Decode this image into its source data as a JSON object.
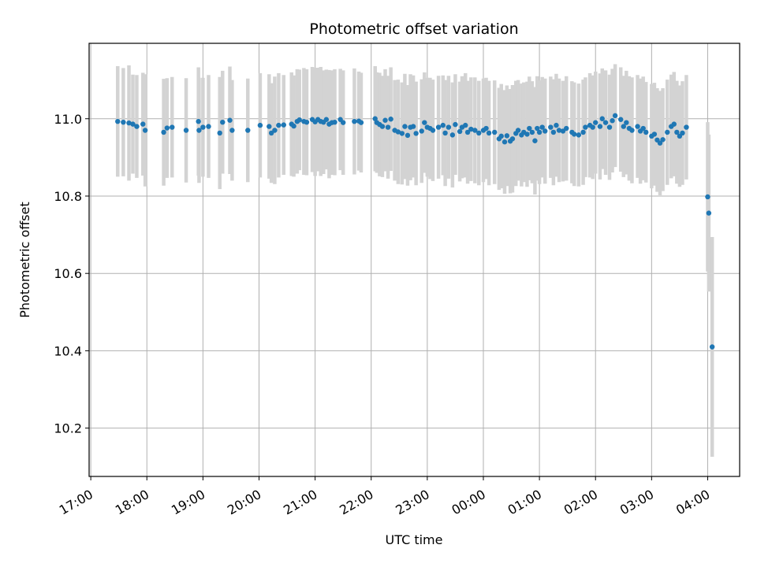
{
  "chart_data": {
    "type": "scatter",
    "title": "Photometric offset variation",
    "xlabel": "UTC time",
    "ylabel": "Photometric offset",
    "x_unit": "hours since 17:00 UTC",
    "xlim": [
      -0.03,
      11.57
    ],
    "ylim": [
      10.075,
      11.195
    ],
    "xticks": [
      "17:00",
      "18:00",
      "19:00",
      "20:00",
      "21:00",
      "22:00",
      "23:00",
      "00:00",
      "01:00",
      "02:00",
      "03:00",
      "04:00"
    ],
    "yticks": [
      "10.2",
      "10.4",
      "10.6",
      "10.8",
      "11.0"
    ],
    "grid": true,
    "colors": {
      "marker": "#1f77b4",
      "errorbar": "#d3d3d3",
      "grid": "#b0b0b0"
    },
    "series": [
      {
        "values": [
          [
            0.48,
            10.993,
            0.143
          ],
          [
            0.58,
            10.991,
            0.14
          ],
          [
            0.68,
            10.989,
            0.149
          ],
          [
            0.75,
            10.986,
            0.128
          ],
          [
            0.82,
            10.98,
            0.133
          ],
          [
            0.93,
            10.986,
            0.133
          ],
          [
            0.97,
            10.97,
            0.145
          ],
          [
            1.3,
            10.965,
            0.138
          ],
          [
            1.36,
            10.976,
            0.129
          ],
          [
            1.45,
            10.978,
            0.13
          ],
          [
            1.7,
            10.97,
            0.135
          ],
          [
            1.92,
            10.993,
            0.14
          ],
          [
            1.93,
            10.97,
            0.136
          ],
          [
            2.0,
            10.978,
            0.128
          ],
          [
            2.1,
            10.98,
            0.133
          ],
          [
            2.3,
            10.963,
            0.145
          ],
          [
            2.35,
            10.991,
            0.133
          ],
          [
            2.48,
            10.996,
            0.139
          ],
          [
            2.52,
            10.97,
            0.13
          ],
          [
            2.8,
            10.97,
            0.134
          ],
          [
            3.02,
            10.983,
            0.135
          ],
          [
            3.18,
            10.98,
            0.135
          ],
          [
            3.22,
            10.963,
            0.129
          ],
          [
            3.28,
            10.97,
            0.139
          ],
          [
            3.35,
            10.983,
            0.135
          ],
          [
            3.44,
            10.984,
            0.129
          ],
          [
            3.58,
            10.986,
            0.134
          ],
          [
            3.62,
            10.981,
            0.131
          ],
          [
            3.68,
            10.993,
            0.135
          ],
          [
            3.72,
            10.997,
            0.13
          ],
          [
            3.8,
            10.993,
            0.138
          ],
          [
            3.85,
            10.991,
            0.137
          ],
          [
            3.95,
            10.998,
            0.136
          ],
          [
            4.0,
            10.992,
            0.14
          ],
          [
            4.05,
            10.998,
            0.134
          ],
          [
            4.1,
            10.993,
            0.141
          ],
          [
            4.15,
            10.991,
            0.134
          ],
          [
            4.2,
            10.998,
            0.129
          ],
          [
            4.25,
            10.986,
            0.14
          ],
          [
            4.3,
            10.99,
            0.135
          ],
          [
            4.35,
            10.991,
            0.137
          ],
          [
            4.45,
            10.998,
            0.131
          ],
          [
            4.5,
            10.99,
            0.135
          ],
          [
            4.7,
            10.993,
            0.137
          ],
          [
            4.78,
            10.994,
            0.128
          ],
          [
            4.82,
            10.99,
            0.129
          ],
          [
            5.07,
            11.0,
            0.136
          ],
          [
            5.1,
            10.99,
            0.13
          ],
          [
            5.15,
            10.985,
            0.134
          ],
          [
            5.2,
            10.98,
            0.131
          ],
          [
            5.25,
            10.996,
            0.132
          ],
          [
            5.3,
            10.978,
            0.133
          ],
          [
            5.35,
            10.999,
            0.134
          ],
          [
            5.42,
            10.97,
            0.13
          ],
          [
            5.48,
            10.966,
            0.135
          ],
          [
            5.55,
            10.962,
            0.132
          ],
          [
            5.6,
            10.98,
            0.136
          ],
          [
            5.65,
            10.957,
            0.13
          ],
          [
            5.7,
            10.978,
            0.137
          ],
          [
            5.75,
            10.98,
            0.132
          ],
          [
            5.8,
            10.962,
            0.134
          ],
          [
            5.9,
            10.968,
            0.134
          ],
          [
            5.95,
            10.99,
            0.13
          ],
          [
            6.0,
            10.978,
            0.128
          ],
          [
            6.05,
            10.975,
            0.131
          ],
          [
            6.1,
            10.97,
            0.131
          ],
          [
            6.2,
            10.978,
            0.133
          ],
          [
            6.28,
            10.983,
            0.129
          ],
          [
            6.32,
            10.963,
            0.137
          ],
          [
            6.38,
            10.978,
            0.133
          ],
          [
            6.45,
            10.958,
            0.136
          ],
          [
            6.5,
            10.985,
            0.13
          ],
          [
            6.58,
            10.967,
            0.129
          ],
          [
            6.62,
            10.978,
            0.132
          ],
          [
            6.68,
            10.983,
            0.135
          ],
          [
            6.72,
            10.965,
            0.133
          ],
          [
            6.78,
            10.973,
            0.134
          ],
          [
            6.85,
            10.97,
            0.137
          ],
          [
            6.92,
            10.963,
            0.135
          ],
          [
            7.0,
            10.97,
            0.134
          ],
          [
            7.05,
            10.975,
            0.131
          ],
          [
            7.1,
            10.963,
            0.135
          ],
          [
            7.2,
            10.965,
            0.134
          ],
          [
            7.28,
            10.948,
            0.132
          ],
          [
            7.32,
            10.955,
            0.135
          ],
          [
            7.38,
            10.94,
            0.134
          ],
          [
            7.42,
            10.956,
            0.13
          ],
          [
            7.48,
            10.942,
            0.135
          ],
          [
            7.52,
            10.948,
            0.139
          ],
          [
            7.58,
            10.962,
            0.136
          ],
          [
            7.62,
            10.97,
            0.13
          ],
          [
            7.68,
            10.958,
            0.133
          ],
          [
            7.72,
            10.965,
            0.129
          ],
          [
            7.78,
            10.96,
            0.136
          ],
          [
            7.82,
            10.975,
            0.134
          ],
          [
            7.87,
            10.965,
            0.132
          ],
          [
            7.92,
            10.943,
            0.139
          ],
          [
            7.96,
            10.975,
            0.135
          ],
          [
            8.0,
            10.965,
            0.134
          ],
          [
            8.05,
            10.978,
            0.13
          ],
          [
            8.1,
            10.968,
            0.136
          ],
          [
            8.2,
            10.978,
            0.131
          ],
          [
            8.25,
            10.965,
            0.137
          ],
          [
            8.3,
            10.983,
            0.133
          ],
          [
            8.35,
            10.97,
            0.134
          ],
          [
            8.42,
            10.968,
            0.13
          ],
          [
            8.48,
            10.975,
            0.135
          ],
          [
            8.58,
            10.965,
            0.132
          ],
          [
            8.62,
            10.96,
            0.134
          ],
          [
            8.7,
            10.958,
            0.133
          ],
          [
            8.78,
            10.965,
            0.136
          ],
          [
            8.82,
            10.978,
            0.129
          ],
          [
            8.9,
            10.983,
            0.135
          ],
          [
            8.95,
            10.978,
            0.134
          ],
          [
            9.0,
            10.99,
            0.132
          ],
          [
            9.08,
            10.98,
            0.137
          ],
          [
            9.12,
            11.0,
            0.13
          ],
          [
            9.18,
            10.99,
            0.135
          ],
          [
            9.25,
            10.978,
            0.136
          ],
          [
            9.3,
            10.995,
            0.134
          ],
          [
            9.35,
            11.008,
            0.133
          ],
          [
            9.45,
            10.998,
            0.135
          ],
          [
            9.5,
            10.98,
            0.131
          ],
          [
            9.55,
            10.99,
            0.134
          ],
          [
            9.6,
            10.975,
            0.135
          ],
          [
            9.65,
            10.97,
            0.137
          ],
          [
            9.75,
            10.98,
            0.133
          ],
          [
            9.8,
            10.968,
            0.136
          ],
          [
            9.85,
            10.975,
            0.134
          ],
          [
            9.9,
            10.965,
            0.13
          ],
          [
            10.0,
            10.955,
            0.135
          ],
          [
            10.05,
            10.96,
            0.133
          ],
          [
            10.1,
            10.945,
            0.134
          ],
          [
            10.15,
            10.937,
            0.135
          ],
          [
            10.2,
            10.946,
            0.133
          ],
          [
            10.28,
            10.965,
            0.136
          ],
          [
            10.35,
            10.98,
            0.134
          ],
          [
            10.4,
            10.986,
            0.135
          ],
          [
            10.45,
            10.965,
            0.133
          ],
          [
            10.5,
            10.955,
            0.131
          ],
          [
            10.55,
            10.963,
            0.134
          ],
          [
            10.62,
            10.978,
            0.135
          ],
          [
            11.0,
            10.798,
            0.193
          ],
          [
            11.02,
            10.756,
            0.203
          ],
          [
            11.08,
            10.41,
            0.284
          ]
        ]
      }
    ]
  }
}
